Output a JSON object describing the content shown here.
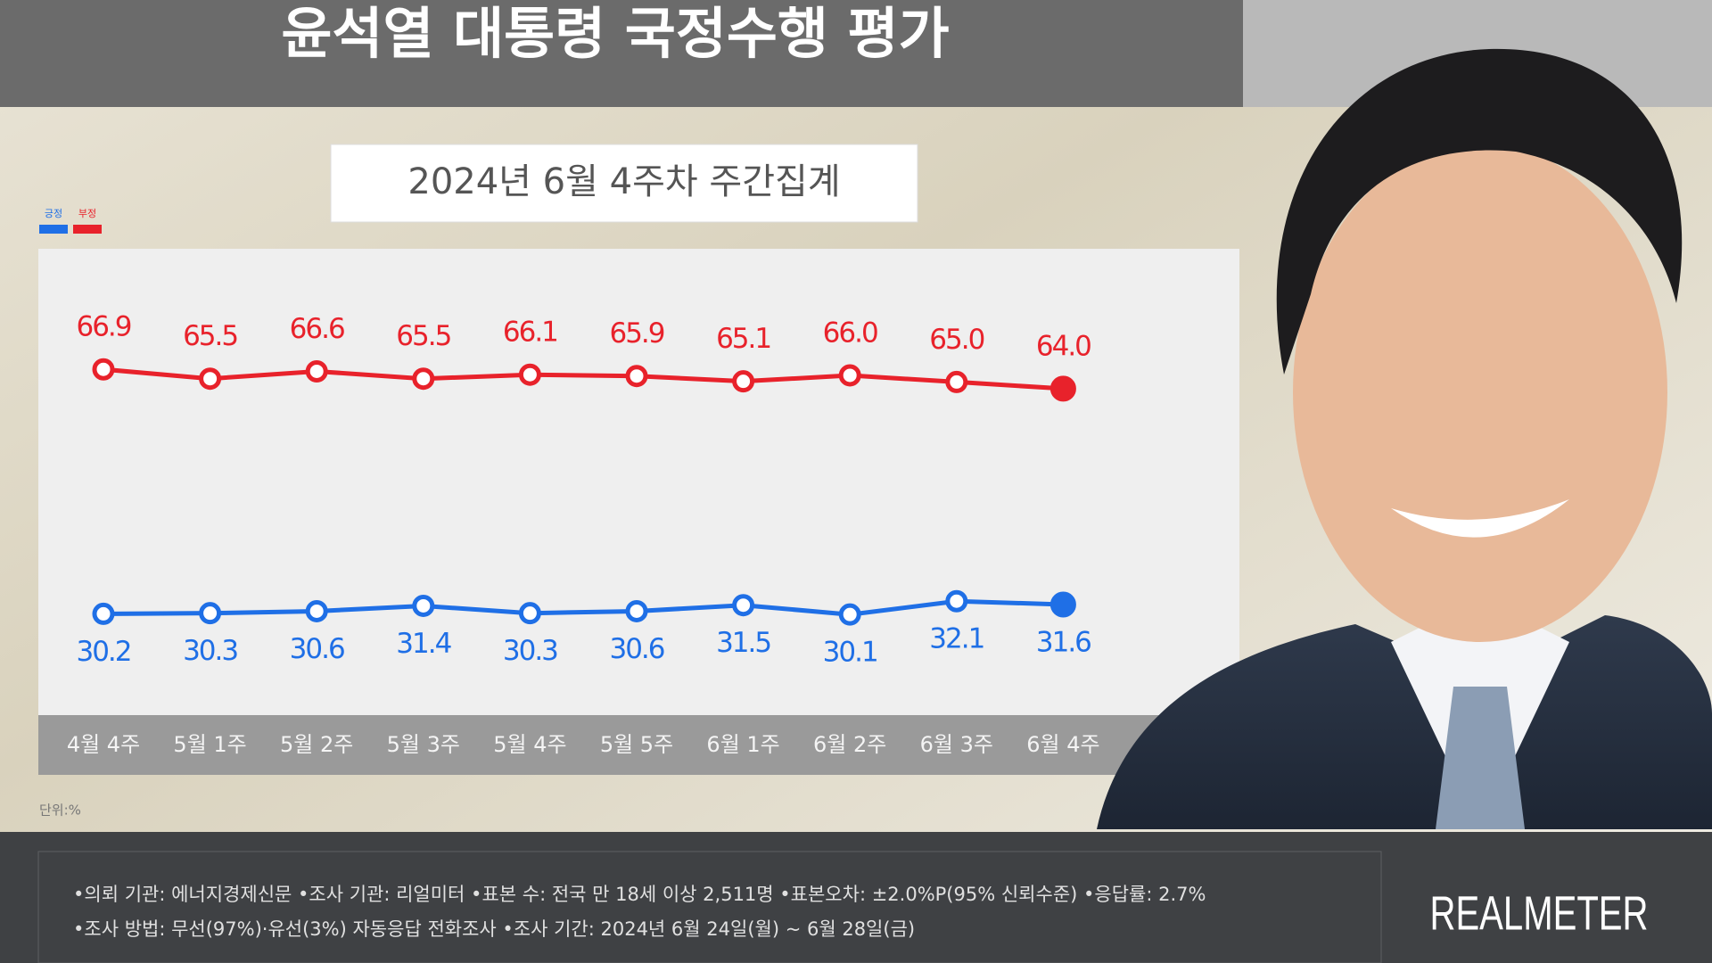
{
  "chart_data": {
    "type": "line",
    "title": "윤석열 대통령 국정수행 평가",
    "subtitle": "2024년 6월 4주차 주간집계",
    "unit_label": "단위:%",
    "categories": [
      "4월 4주",
      "5월 1주",
      "5월 2주",
      "5월 3주",
      "5월 4주",
      "5월 5주",
      "6월 1주",
      "6월 2주",
      "6월 3주",
      "6월 4주"
    ],
    "series": [
      {
        "name": "긍정",
        "color": "#1f6fe6",
        "values": [
          30.2,
          30.3,
          30.6,
          31.4,
          30.3,
          30.6,
          31.5,
          30.1,
          32.1,
          31.6
        ],
        "value_labels": [
          "30.2",
          "30.3",
          "30.6",
          "31.4",
          "30.3",
          "30.6",
          "31.5",
          "30.1",
          "32.1",
          "31.6"
        ]
      },
      {
        "name": "부정",
        "color": "#e8222b",
        "values": [
          66.9,
          65.5,
          66.6,
          65.5,
          66.1,
          65.9,
          65.1,
          66.0,
          65.0,
          64.0
        ],
        "value_labels": [
          "66.9",
          "65.5",
          "66.6",
          "65.5",
          "66.1",
          "65.9",
          "65.1",
          "66.0",
          "65.0",
          "64.0"
        ]
      }
    ],
    "ylim": [
      15,
      85
    ]
  },
  "footer": {
    "notes": [
      "•의뢰 기관: 에너지경제신문 •조사 기관: 리얼미터 •표본 수: 전국 만 18세 이상 2,511명 •표본오차: ±2.0%P(95% 신뢰수준) •응답률: 2.7%",
      "•조사 방법: 무선(97%)·유선(3%) 자동응답 전화조사 •조사 기간: 2024년 6월 24일(월) ~ 6월 28일(금)"
    ],
    "brand": "REALMETER"
  }
}
